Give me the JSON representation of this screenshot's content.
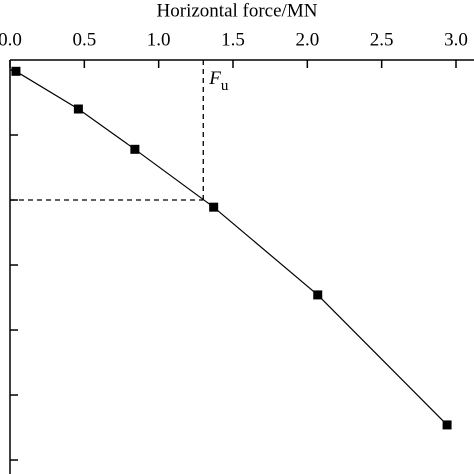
{
  "chart_data": {
    "type": "line",
    "x_label": "Horizontal force/MN",
    "x": [
      0.04,
      0.46,
      0.84,
      1.37,
      2.07,
      2.94
    ],
    "series": [
      {
        "color": "#000000",
        "values": [
          0.02,
          0.6,
          1.22,
          2.11,
          3.46,
          5.46
        ]
      }
    ],
    "xlim": [
      0,
      3.0
    ],
    "xticks": [
      {
        "value": 0,
        "label": "0.0"
      },
      {
        "value": 0.5,
        "label": "0.5"
      },
      {
        "value": 1,
        "label": "1.0"
      },
      {
        "value": 1.5,
        "label": "1.5"
      },
      {
        "value": 2,
        "label": "2.0"
      },
      {
        "value": 2.5,
        "label": "2.5"
      },
      {
        "value": 3,
        "label": "3.0"
      }
    ],
    "ylim": [
      -0.154,
      6.215
    ],
    "yticks": [
      0,
      1,
      2,
      3,
      4,
      5,
      6
    ],
    "y_inverted": true,
    "x_axis_position": "top",
    "marker": "square",
    "reference": {
      "x": 1.3,
      "y": 2.0,
      "symbol": "F",
      "subscript": "u"
    }
  }
}
